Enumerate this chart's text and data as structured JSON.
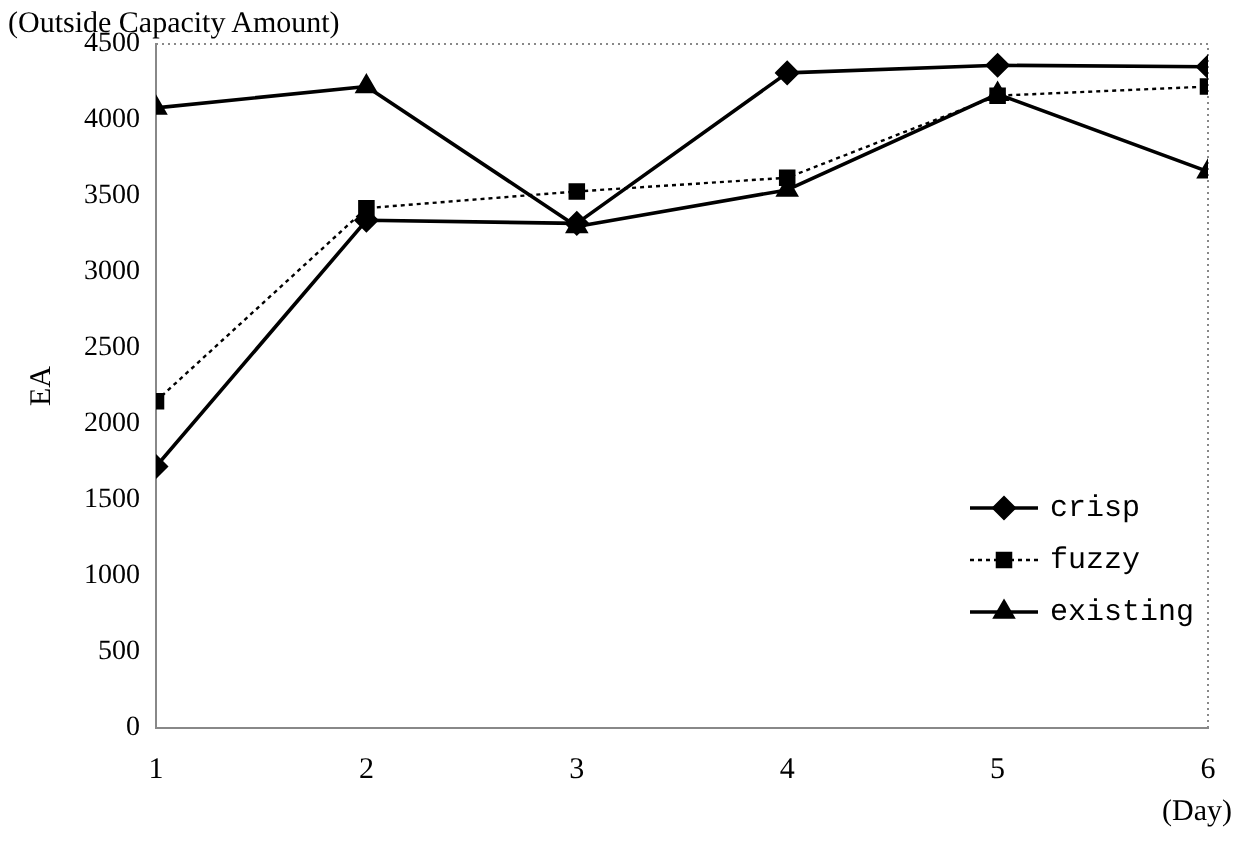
{
  "chart_data": {
    "type": "line",
    "title": "(Outside Capacity Amount)",
    "ylabel": "EA",
    "xlabel": "(Day)",
    "x": [
      1,
      2,
      3,
      4,
      5,
      6
    ],
    "xlim": [
      1,
      6
    ],
    "xticks": [
      1,
      2,
      3,
      4,
      5,
      6
    ],
    "ylim": [
      0,
      4500
    ],
    "yticks": [
      0,
      500,
      1000,
      1500,
      2000,
      2500,
      3000,
      3500,
      4000,
      4500
    ],
    "grid": false,
    "legend": "right",
    "series": [
      {
        "name": "crisp",
        "color": "#000000",
        "marker": "diamond",
        "line_style": "solid",
        "values": [
          1720,
          3340,
          3320,
          4310,
          4360,
          4350
        ]
      },
      {
        "name": "fuzzy",
        "color": "#000000",
        "marker": "square",
        "line_style": "dotted",
        "values": [
          2150,
          3420,
          3530,
          3620,
          4160,
          4220
        ]
      },
      {
        "name": "existing",
        "color": "#000000",
        "marker": "triangle",
        "line_style": "solid",
        "values": [
          4080,
          4220,
          3300,
          3540,
          4170,
          3660
        ]
      }
    ]
  }
}
